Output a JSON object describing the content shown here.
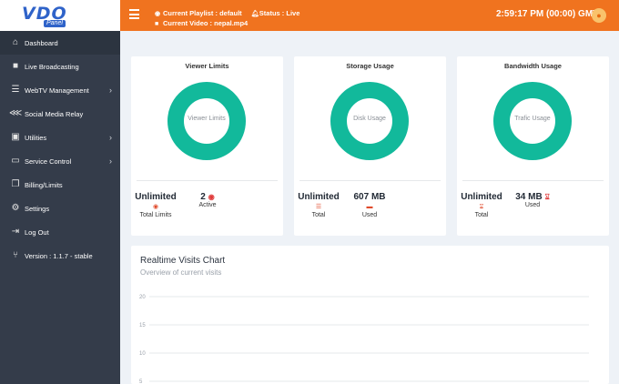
{
  "topbar": {
    "logo_main": "VDO",
    "logo_sub": "Panel",
    "playlist": "Current Playlist : default",
    "status": "Status : Live",
    "video": "Current Video : nepal.mp4",
    "clock": "2:59:17 PM (00:00) GMT",
    "colors": {
      "bar": "#f0731f",
      "logo": "#2f63c9"
    }
  },
  "sidebar": {
    "items": [
      {
        "label": "Dashboard",
        "icon": "home-icon"
      },
      {
        "label": "Live Broadcasting",
        "icon": "video-camera-icon"
      },
      {
        "label": "WebTV Management",
        "icon": "list-icon"
      },
      {
        "label": "Social Media Relay",
        "icon": "share-icon"
      },
      {
        "label": "Utilities",
        "icon": "toolbox-icon"
      },
      {
        "label": "Service Control",
        "icon": "laptop-icon"
      },
      {
        "label": "Billing/Limits",
        "icon": "copy-icon"
      },
      {
        "label": "Settings",
        "icon": "gears-icon"
      },
      {
        "label": "Log Out",
        "icon": "logout-icon"
      },
      {
        "label": "Version : 1.1.7 - stable",
        "icon": "code-branch-icon"
      }
    ]
  },
  "cards": {
    "viewer": {
      "title": "Viewer Limits",
      "center": "Viewer Limits",
      "total_value": "Unlimited",
      "total_label": "Total Limits",
      "active_value": "2",
      "active_label": "Active"
    },
    "storage": {
      "title": "Storage Usage",
      "center": "Disk Usage",
      "total_value": "Unlimited",
      "total_label": "Total",
      "used_value": "607 MB",
      "used_label": "Used"
    },
    "bandwidth": {
      "title": "Bandwidth Usage",
      "center": "Trafic Usage",
      "total_value": "Unlimited",
      "total_label": "Total",
      "used_value": "34 MB",
      "used_label": "Used"
    },
    "donut_color": "#12b99b"
  },
  "visits": {
    "title": "Realtime Visits Chart",
    "subtitle": "Overview of current visits"
  },
  "chart_data": {
    "type": "line",
    "title": "Realtime Visits Chart",
    "subtitle": "Overview of current visits",
    "y_ticks": [
      "20",
      "15",
      "10",
      "5"
    ],
    "ylim": [
      0,
      20
    ],
    "grid": true,
    "series": []
  }
}
